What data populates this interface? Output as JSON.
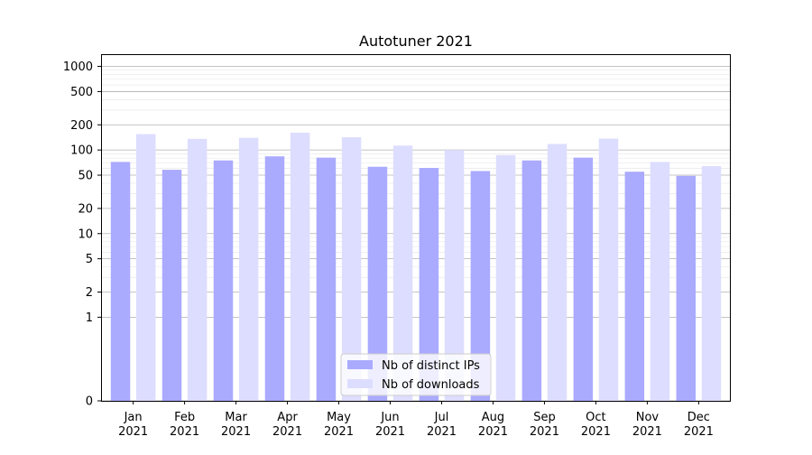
{
  "chart_data": {
    "type": "bar",
    "title": "Autotuner 2021",
    "xlabel": "",
    "ylabel": "",
    "yscale": "symlog",
    "categories": [
      "Jan\n2021",
      "Feb\n2021",
      "Mar\n2021",
      "Apr\n2021",
      "May\n2021",
      "Jun\n2021",
      "Jul\n2021",
      "Aug\n2021",
      "Sep\n2021",
      "Oct\n2021",
      "Nov\n2021",
      "Dec\n2021"
    ],
    "series": [
      {
        "name": "Nb of distinct IPs",
        "color": "#aaaaff",
        "values": [
          72,
          58,
          75,
          84,
          81,
          63,
          61,
          56,
          75,
          81,
          55,
          49
        ]
      },
      {
        "name": "Nb of downloads",
        "color": "#ddddff",
        "values": [
          155,
          136,
          140,
          161,
          142,
          113,
          100,
          87,
          118,
          137,
          72,
          64
        ]
      }
    ],
    "yticks": [
      0,
      1,
      2,
      5,
      10,
      20,
      50,
      100,
      200,
      500,
      1000
    ],
    "ylim": [
      0,
      1400
    ],
    "grid": true,
    "legend_position": "bottom-center"
  }
}
